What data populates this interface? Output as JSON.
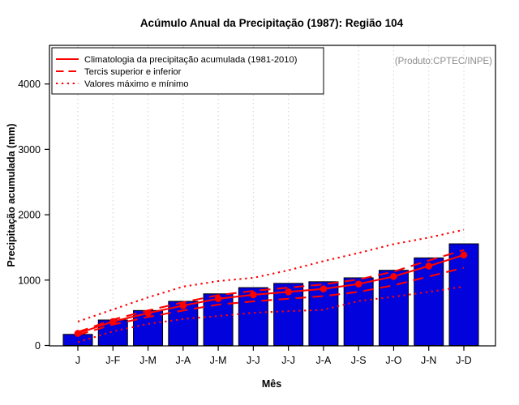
{
  "chart_data": {
    "type": "bar",
    "title": "Acúmulo Anual da Precipitação (1987): Região 104",
    "xlabel": "Mês",
    "ylabel": "Precipitação acumulada (mm)",
    "product_note": "(Produto:CPTEC/INPE)",
    "categories": [
      "J",
      "J-F",
      "J-M",
      "J-A",
      "J-M",
      "J-J",
      "J-J",
      "J-A",
      "J-S",
      "J-O",
      "J-N",
      "J-D"
    ],
    "y_ticks": [
      0,
      1000,
      2000,
      3000,
      4000
    ],
    "ylim": [
      0,
      4580
    ],
    "grid": "vertical-dotted-per-month",
    "legend_position": "top-left",
    "bars": {
      "key": "accumulated-precipitation-1987",
      "values": [
        170,
        390,
        535,
        675,
        790,
        885,
        950,
        975,
        1035,
        1150,
        1340,
        1555
      ],
      "color": "#0202dd"
    },
    "series": [
      {
        "key": "climatology",
        "name": "Climatologia da precipitação acumulada (1981-2010)",
        "style": "solid",
        "marker": "circle",
        "values": [
          185,
          365,
          495,
          610,
          715,
          775,
          820,
          865,
          940,
          1055,
          1215,
          1385
        ]
      },
      {
        "key": "tercil-superior",
        "name": "Tercil superior",
        "style": "dashed",
        "marker": "none",
        "values": [
          205,
          395,
          535,
          660,
          770,
          835,
          885,
          935,
          1010,
          1130,
          1300,
          1460
        ]
      },
      {
        "key": "tercil-inferior",
        "name": "Tercil inferior",
        "style": "dashed",
        "marker": "none",
        "values": [
          160,
          320,
          435,
          535,
          625,
          675,
          715,
          755,
          820,
          920,
          1055,
          1190
        ]
      },
      {
        "key": "valor-maximo",
        "name": "Valor máximo",
        "style": "dotted",
        "marker": "none",
        "values": [
          365,
          550,
          735,
          900,
          985,
          1035,
          1150,
          1290,
          1415,
          1550,
          1650,
          1770
        ]
      },
      {
        "key": "valor-minimo",
        "name": "Valor mínimo",
        "style": "dotted",
        "marker": "none",
        "values": [
          50,
          215,
          330,
          405,
          450,
          500,
          525,
          545,
          680,
          745,
          820,
          900
        ]
      }
    ],
    "legend": [
      {
        "label": "Climatologia da precipitação acumulada (1981-2010)",
        "style": "solid"
      },
      {
        "label": "Tercis superior e inferior",
        "style": "dashed"
      },
      {
        "label": "Valores máximo e mínimo",
        "style": "dotted"
      }
    ],
    "colors": {
      "line": "#ff0000",
      "bar_fill": "#0202dd",
      "bar_border": "#000000",
      "grid": "#d2d2d2",
      "frame": "#000000",
      "note_text": "#8c8c8c",
      "text": "#000000"
    }
  }
}
